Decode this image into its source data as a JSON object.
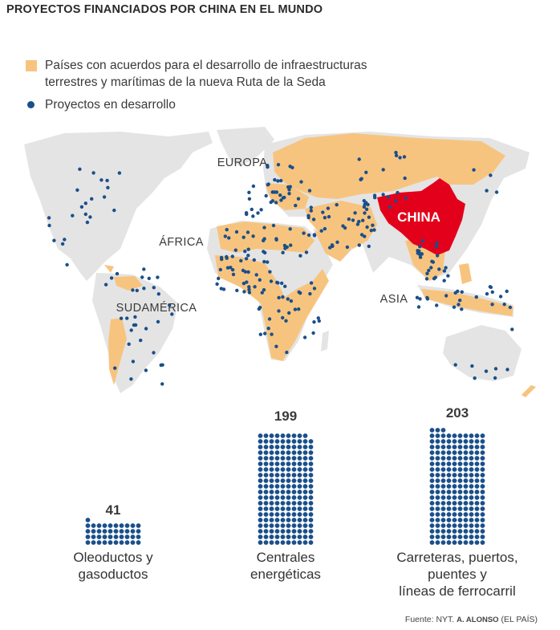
{
  "title": "PROYECTOS FINANCIADOS POR CHINA EN EL MUNDO",
  "legend": {
    "agreements_line1": "Países con acuerdos para el desarrollo de infraestructuras",
    "agreements_line2": "terrestres y marítimas de la nueva Ruta de la Seda",
    "projects": "Proyectos en desarrollo"
  },
  "colors": {
    "agreements": "#f7c47f",
    "projects": "#1a4f8a",
    "china": "#e3001b",
    "land": "#e4e4e4"
  },
  "map_labels": {
    "europa": "EUROPA",
    "africa": "ÁFRICA",
    "sudamerica": "SUDAMÉRICA",
    "asia": "ASIA",
    "china": "CHINA"
  },
  "chart_data": {
    "type": "bar",
    "categories": [
      "Oleoductos y gasoductos",
      "Centrales energéticas",
      "Carreteras, puertos, puentes y líneas de ferrocarril"
    ],
    "values": [
      41,
      199,
      203
    ],
    "label_lines": [
      [
        "Oleoductos y",
        "gasoductos"
      ],
      [
        "Centrales",
        "energéticas"
      ],
      [
        "Carreteras, puertos,",
        "puentes y",
        "líneas de ferrocarril"
      ]
    ]
  },
  "source": {
    "prefix": "Fuente: NYT.",
    "author": "A. ALONSO",
    "suffix": "(EL PAÍS)"
  }
}
